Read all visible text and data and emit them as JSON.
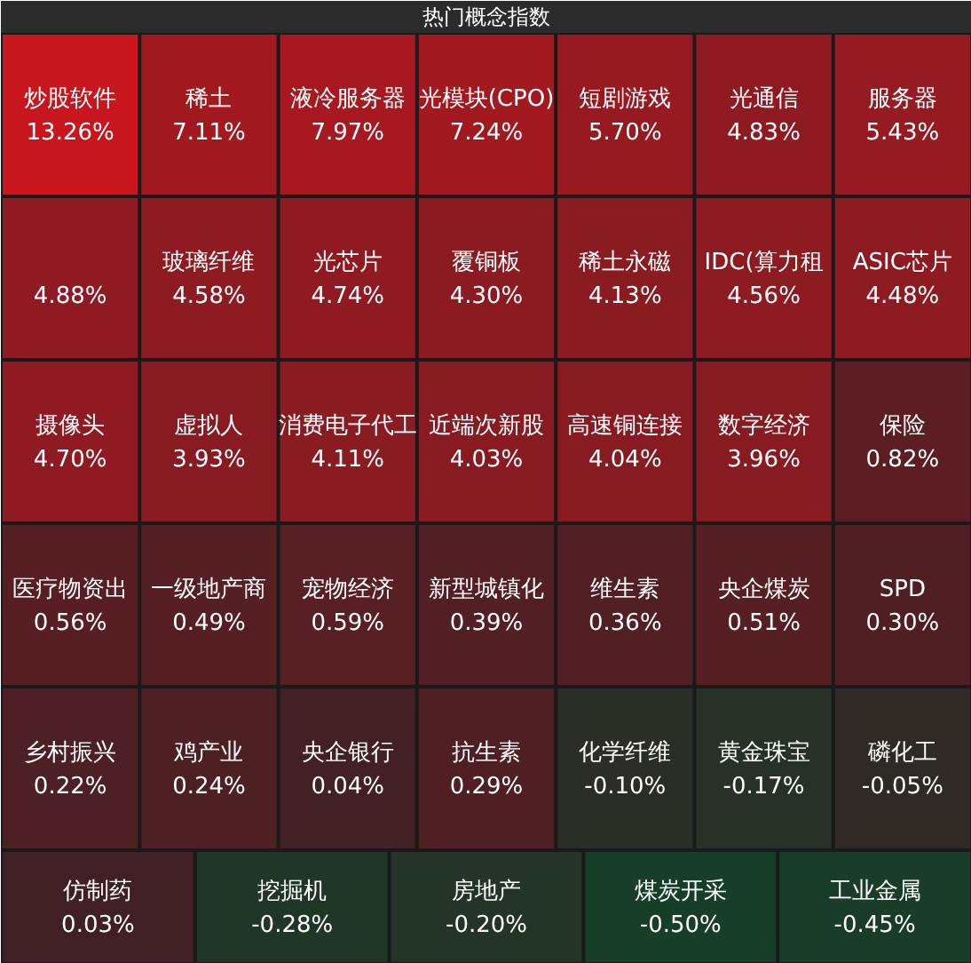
{
  "chart_data": {
    "type": "other",
    "title": "热门概念指数",
    "categories": [
      "炒股软件",
      "稀土",
      "液冷服务器",
      "光模块(CPO)",
      "短剧游戏",
      "光通信",
      "服务器",
      null,
      "玻璃纤维",
      "光芯片",
      "覆铜板",
      "稀土永磁",
      "IDC(算力租",
      "ASIC芯片",
      "摄像头",
      "虚拟人",
      "消费电子代工",
      "近端次新股",
      "高速铜连接",
      "数字经济",
      "保险",
      "医疗物资出",
      "一级地产商",
      "宠物经济",
      "新型城镇化",
      "维生素",
      "央企煤炭",
      "SPD",
      "乡村振兴",
      "鸡产业",
      "央企银行",
      "抗生素",
      "化学纤维",
      "黄金珠宝",
      "磷化工",
      "仿制药",
      "挖掘机",
      "房地产",
      "煤炭开采",
      "工业金属"
    ],
    "values": [
      13.26,
      7.11,
      7.97,
      7.24,
      5.7,
      4.83,
      5.43,
      4.88,
      4.58,
      4.74,
      4.3,
      4.13,
      4.56,
      4.48,
      4.7,
      3.93,
      4.11,
      4.03,
      4.04,
      3.96,
      0.82,
      0.56,
      0.49,
      0.59,
      0.39,
      0.36,
      0.51,
      0.3,
      0.22,
      0.24,
      0.04,
      0.29,
      -0.1,
      -0.17,
      -0.05,
      0.03,
      -0.28,
      -0.2,
      -0.5,
      -0.45
    ],
    "value_labels": [
      "13.26%",
      "7.11%",
      "7.97%",
      "7.24%",
      "5.70%",
      "4.83%",
      "5.43%",
      "4.88%",
      "4.58%",
      "4.74%",
      "4.30%",
      "4.13%",
      "4.56%",
      "4.48%",
      "4.70%",
      "3.93%",
      "4.11%",
      "4.03%",
      "4.04%",
      "3.96%",
      "0.82%",
      "0.56%",
      "0.49%",
      "0.59%",
      "0.39%",
      "0.36%",
      "0.51%",
      "0.30%",
      "0.22%",
      "0.24%",
      "0.04%",
      "0.29%",
      "-0.10%",
      "-0.17%",
      "-0.05%",
      "0.03%",
      "-0.28%",
      "-0.20%",
      "-0.50%",
      "-0.45%"
    ]
  }
}
